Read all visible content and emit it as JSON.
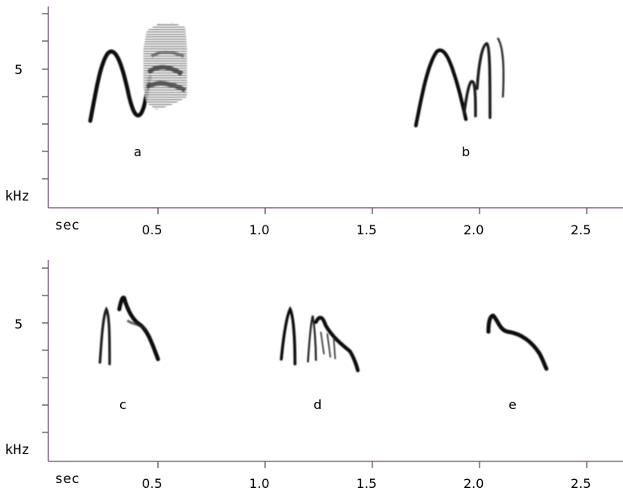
{
  "figure": {
    "panels": [
      {
        "id": "top",
        "y_tick_label": "5",
        "y_unit": "kHz",
        "x_unit": "sec",
        "x_tick_labels": [
          "0.5",
          "1.0",
          "1.5",
          "2.0",
          "2.5"
        ],
        "call_labels": [
          "a",
          "b"
        ]
      },
      {
        "id": "bottom",
        "y_tick_label": "5",
        "y_unit": "kHz",
        "x_unit": "sec",
        "x_tick_labels": [
          "0.5",
          "1.0",
          "1.5",
          "2.0",
          "2.5"
        ],
        "call_labels": [
          "c",
          "d",
          "e"
        ]
      }
    ],
    "colors": {
      "axis": "#6a4a6a",
      "ink": "#000000",
      "trace": "#1a1a1a"
    }
  }
}
